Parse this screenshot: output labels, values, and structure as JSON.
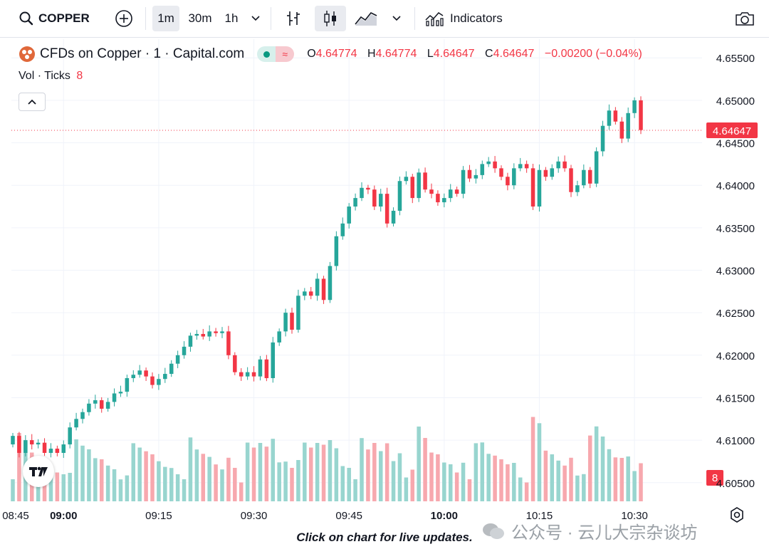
{
  "toolbar": {
    "symbol": "COPPER",
    "intervals": [
      "1m",
      "30m",
      "1h"
    ],
    "active_interval": "1m",
    "indicators_label": "Indicators"
  },
  "legend": {
    "title": "CFDs on Copper · 1 · Capital.com",
    "o_label": "O",
    "o_value": "4.64774",
    "h_label": "H",
    "h_value": "4.64774",
    "l_label": "L",
    "l_value": "4.64647",
    "c_label": "C",
    "c_value": "4.64647",
    "change": "−0.00200 (−0.04%)"
  },
  "volume_legend": {
    "label": "Vol · Ticks",
    "value": "8"
  },
  "price_badge": "4.64647",
  "volume_badge": "8",
  "footer_text": "Click on chart for live updates.",
  "watermark_text": "公众号 · 云儿大宗杂谈坊",
  "colors": {
    "up": "#26a69a",
    "down": "#f23645",
    "vol_up": "#98d5cf",
    "vol_down": "#f7a8ae",
    "grid": "#f0f3fa"
  },
  "chart_data": {
    "type": "candlestick",
    "interval": "1m",
    "y_ticks": [
      "4.65500",
      "4.65000",
      "4.64500",
      "4.64000",
      "4.63500",
      "4.63000",
      "4.62500",
      "4.62000",
      "4.61500",
      "4.61000",
      "4.60500"
    ],
    "x_ticks": [
      "08:45",
      "09:00",
      "09:15",
      "09:30",
      "09:45",
      "10:00",
      "10:15",
      "10:30"
    ],
    "ylim": [
      4.6028,
      4.6572
    ],
    "last_price": 4.64647,
    "close_series": [
      4.6105,
      4.6085,
      4.61,
      4.6095,
      4.6097,
      4.6085,
      4.609,
      4.6085,
      4.6095,
      4.6115,
      4.6125,
      4.6133,
      4.6143,
      4.6147,
      4.6137,
      4.6145,
      4.6155,
      4.6157,
      4.6173,
      4.6177,
      4.6182,
      4.6175,
      4.6165,
      4.6172,
      4.6178,
      4.619,
      4.62,
      4.621,
      4.6223,
      4.6225,
      4.6222,
      4.6228,
      4.6226,
      4.6228,
      4.62,
      4.618,
      4.6175,
      4.618,
      4.6175,
      4.6195,
      4.6173,
      4.6215,
      4.6228,
      4.625,
      4.623,
      4.627,
      4.6275,
      4.627,
      4.629,
      4.6265,
      4.6305,
      4.634,
      4.6355,
      4.6375,
      4.6385,
      4.6397,
      4.6395,
      4.6375,
      4.639,
      4.6355,
      4.637,
      4.6405,
      4.641,
      4.6385,
      4.6415,
      4.6395,
      4.639,
      4.638,
      4.6385,
      4.6395,
      4.639,
      4.6418,
      4.6408,
      4.6412,
      4.6425,
      4.6428,
      4.642,
      4.641,
      4.64,
      4.642,
      4.6425,
      4.642,
      4.6375,
      4.6418,
      4.641,
      4.642,
      4.6428,
      4.642,
      4.6392,
      4.64,
      4.6418,
      4.6402,
      4.644,
      4.647,
      4.6488,
      4.6475,
      4.6455,
      4.6485,
      4.65,
      4.6465
    ]
  }
}
